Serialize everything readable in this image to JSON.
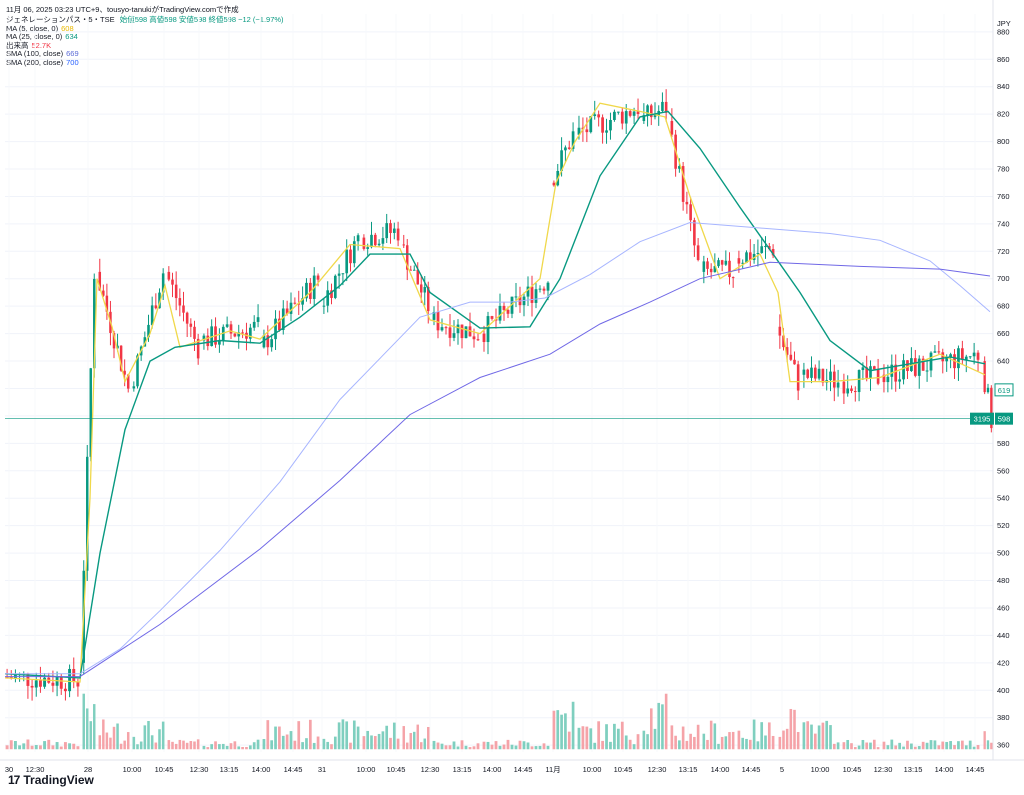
{
  "header": {
    "title": "11月 06, 2025 03:23 UTC+9、tousyo-tanukiがTradingView.comで作成",
    "symbol": "ジェネレーションパス・5・TSE",
    "ohlc": "始値598 高値598 安値598 終値598 −12 (−1.97%)"
  },
  "legend": [
    {
      "label": "MA (5, close, 0)",
      "value": "608",
      "color": "#e8d44a"
    },
    {
      "label": "MA (25, close, 0)",
      "value": "634",
      "color": "#089981"
    },
    {
      "label": "出来高",
      "value": "52.7K",
      "color": "#f23645"
    },
    {
      "label": "SMA (100, close)",
      "value": "669",
      "color": "#5b6bd6"
    },
    {
      "label": "SMA (200, close)",
      "value": "700",
      "color": "#2962ff"
    }
  ],
  "brand": {
    "name": "TradingView",
    "logo": "17"
  },
  "colors": {
    "up": "#089981",
    "down": "#f23645",
    "ma5": "#f0d84a",
    "ma25": "#089981",
    "sma100": "#a7b5ff",
    "sma200": "#7068e6",
    "vol_up": "#7fcfbf",
    "vol_down": "#f5a3a8"
  },
  "chart_data": {
    "type": "candlestick",
    "currency": "JPY",
    "y_ticks": [
      360,
      380,
      400,
      420,
      440,
      460,
      480,
      500,
      520,
      540,
      560,
      580,
      600,
      620,
      640,
      660,
      680,
      700,
      720,
      740,
      760,
      780,
      800,
      820,
      840,
      860,
      880
    ],
    "x_ticks": [
      "30",
      "12:30",
      "28",
      "10:00",
      "10:45",
      "12:30",
      "13:15",
      "14:00",
      "14:45",
      "31",
      "10:00",
      "10:45",
      "12:30",
      "13:15",
      "14:00",
      "14:45",
      "11月",
      "10:00",
      "10:45",
      "12:30",
      "13:15",
      "14:00",
      "14:45",
      "5",
      "10:00",
      "10:45",
      "12:30",
      "13:15",
      "14:00",
      "14:45"
    ],
    "labels": {
      "ma_last": "619",
      "volume_last": "3195",
      "price_last": "598"
    },
    "ylim": [
      355,
      893
    ],
    "segments": [
      {
        "x0": 5,
        "x1": 80,
        "p0": 410,
        "p1": 407,
        "n": 18,
        "vol": "low"
      },
      {
        "x0": 82,
        "x1": 96,
        "p0": 420,
        "p1": 705,
        "n": 4,
        "vol": "high"
      },
      {
        "x0": 98,
        "x1": 130,
        "p0": 705,
        "p1": 620,
        "n": 9,
        "vol": "mid"
      },
      {
        "x0": 132,
        "x1": 165,
        "p0": 620,
        "p1": 705,
        "n": 9,
        "vol": "mid"
      },
      {
        "x0": 167,
        "x1": 200,
        "p0": 705,
        "p1": 650,
        "n": 9,
        "vol": "low"
      },
      {
        "x0": 202,
        "x1": 260,
        "p0": 655,
        "p1": 665,
        "n": 15,
        "vol": "low"
      },
      {
        "x0": 262,
        "x1": 320,
        "p0": 650,
        "p1": 700,
        "n": 15,
        "vol": "mid"
      },
      {
        "x0": 322,
        "x1": 360,
        "p0": 680,
        "p1": 730,
        "n": 10,
        "vol": "mid"
      },
      {
        "x0": 362,
        "x1": 400,
        "p0": 730,
        "p1": 735,
        "n": 10,
        "vol": "mid"
      },
      {
        "x0": 402,
        "x1": 430,
        "p0": 725,
        "p1": 680,
        "n": 8,
        "vol": "mid"
      },
      {
        "x0": 432,
        "x1": 480,
        "p0": 670,
        "p1": 660,
        "n": 12,
        "vol": "low"
      },
      {
        "x0": 482,
        "x1": 550,
        "p0": 660,
        "p1": 700,
        "n": 17,
        "vol": "low"
      },
      {
        "x0": 552,
        "x1": 575,
        "p0": 770,
        "p1": 805,
        "n": 6,
        "vol": "high"
      },
      {
        "x0": 577,
        "x1": 640,
        "p0": 805,
        "p1": 825,
        "n": 16,
        "vol": "mid"
      },
      {
        "x0": 642,
        "x1": 668,
        "p0": 815,
        "p1": 825,
        "n": 7,
        "vol": "high"
      },
      {
        "x0": 670,
        "x1": 700,
        "p0": 815,
        "p1": 710,
        "n": 8,
        "vol": "mid"
      },
      {
        "x0": 702,
        "x1": 735,
        "p0": 705,
        "p1": 705,
        "n": 9,
        "vol": "mid"
      },
      {
        "x0": 737,
        "x1": 775,
        "p0": 715,
        "p1": 722,
        "n": 10,
        "vol": "mid"
      },
      {
        "x0": 778,
        "x1": 800,
        "p0": 665,
        "p1": 625,
        "n": 6,
        "vol": "high"
      },
      {
        "x0": 802,
        "x1": 840,
        "p0": 630,
        "p1": 625,
        "n": 10,
        "vol": "mid"
      },
      {
        "x0": 842,
        "x1": 880,
        "p0": 625,
        "p1": 628,
        "n": 10,
        "vol": "low"
      },
      {
        "x0": 882,
        "x1": 980,
        "p0": 630,
        "p1": 645,
        "n": 25,
        "vol": "low"
      },
      {
        "x0": 983,
        "x1": 993,
        "p0": 640,
        "p1": 598,
        "n": 3,
        "vol": "mid"
      }
    ],
    "lines": {
      "ma5": [
        [
          5,
          409
        ],
        [
          80,
          406
        ],
        [
          90,
          540
        ],
        [
          97,
          700
        ],
        [
          112,
          665
        ],
        [
          125,
          625
        ],
        [
          150,
          660
        ],
        [
          165,
          695
        ],
        [
          180,
          650
        ],
        [
          230,
          662
        ],
        [
          260,
          656
        ],
        [
          310,
          690
        ],
        [
          350,
          725
        ],
        [
          400,
          722
        ],
        [
          430,
          670
        ],
        [
          480,
          660
        ],
        [
          540,
          700
        ],
        [
          556,
          770
        ],
        [
          575,
          800
        ],
        [
          600,
          828
        ],
        [
          640,
          822
        ],
        [
          665,
          818
        ],
        [
          690,
          760
        ],
        [
          720,
          700
        ],
        [
          760,
          718
        ],
        [
          778,
          690
        ],
        [
          790,
          625
        ],
        [
          830,
          625
        ],
        [
          880,
          628
        ],
        [
          940,
          645
        ],
        [
          985,
          630
        ]
      ],
      "ma25": [
        [
          5,
          412
        ],
        [
          80,
          409
        ],
        [
          100,
          500
        ],
        [
          125,
          590
        ],
        [
          150,
          640
        ],
        [
          175,
          650
        ],
        [
          220,
          655
        ],
        [
          260,
          653
        ],
        [
          300,
          672
        ],
        [
          340,
          695
        ],
        [
          370,
          718
        ],
        [
          410,
          718
        ],
        [
          430,
          690
        ],
        [
          480,
          664
        ],
        [
          530,
          665
        ],
        [
          560,
          700
        ],
        [
          600,
          775
        ],
        [
          640,
          818
        ],
        [
          668,
          822
        ],
        [
          700,
          795
        ],
        [
          740,
          752
        ],
        [
          775,
          716
        ],
        [
          800,
          690
        ],
        [
          830,
          655
        ],
        [
          870,
          633
        ],
        [
          910,
          638
        ],
        [
          950,
          643
        ],
        [
          985,
          638
        ]
      ],
      "sma100": [
        [
          5,
          412
        ],
        [
          80,
          412
        ],
        [
          120,
          430
        ],
        [
          160,
          458
        ],
        [
          220,
          502
        ],
        [
          280,
          552
        ],
        [
          340,
          612
        ],
        [
          420,
          672
        ],
        [
          470,
          683
        ],
        [
          510,
          683
        ],
        [
          545,
          686
        ],
        [
          590,
          703
        ],
        [
          640,
          727
        ],
        [
          690,
          741
        ],
        [
          760,
          737
        ],
        [
          830,
          733
        ],
        [
          880,
          728
        ],
        [
          930,
          713
        ],
        [
          960,
          695
        ],
        [
          990,
          676
        ]
      ],
      "sma200": [
        [
          5,
          410
        ],
        [
          80,
          410
        ],
        [
          160,
          448
        ],
        [
          260,
          503
        ],
        [
          340,
          553
        ],
        [
          410,
          601
        ],
        [
          480,
          628
        ],
        [
          550,
          645
        ],
        [
          600,
          667
        ],
        [
          650,
          683
        ],
        [
          700,
          700
        ],
        [
          770,
          712
        ],
        [
          860,
          709
        ],
        [
          940,
          707
        ],
        [
          990,
          702
        ]
      ]
    }
  }
}
